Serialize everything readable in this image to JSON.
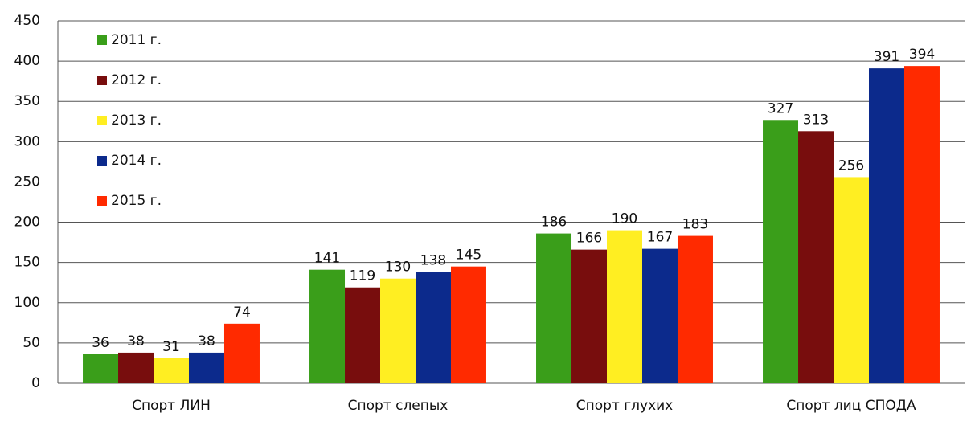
{
  "chart_data": {
    "type": "bar",
    "categories": [
      "Спорт ЛИН",
      "Спорт слепых",
      "Спорт глухих",
      "Спорт лиц СПОДА"
    ],
    "series": [
      {
        "name": "2011 г.",
        "color": "#3a9e1a",
        "values": [
          36,
          141,
          186,
          327
        ]
      },
      {
        "name": "2012 г.",
        "color": "#780d0d",
        "values": [
          38,
          119,
          166,
          313
        ]
      },
      {
        "name": "2013 г.",
        "color": "#ffee22",
        "values": [
          31,
          130,
          190,
          256
        ]
      },
      {
        "name": "2014 г.",
        "color": "#0c2a8c",
        "values": [
          38,
          138,
          167,
          391
        ]
      },
      {
        "name": "2015 г.",
        "color": "#ff2a00",
        "values": [
          74,
          145,
          183,
          394
        ]
      }
    ],
    "ylim": [
      0,
      450
    ],
    "yticks": [
      0,
      50,
      100,
      150,
      200,
      250,
      300,
      350,
      400,
      450
    ],
    "grid": true,
    "legend": "top-left"
  }
}
